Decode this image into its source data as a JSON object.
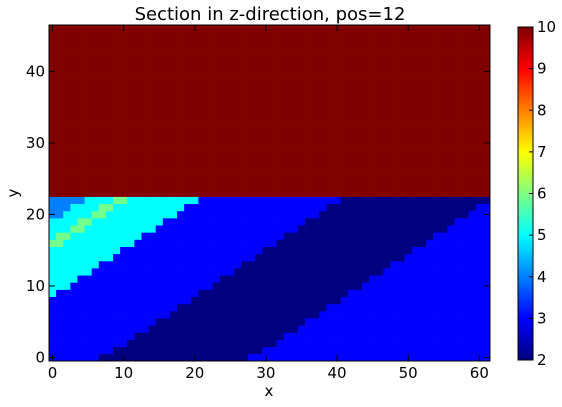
{
  "chart_data": {
    "type": "heatmap",
    "title": "Section in z-direction, pos=12",
    "xlabel": "x",
    "ylabel": "y",
    "xlim": [
      -0.5,
      61.5
    ],
    "ylim": [
      -0.5,
      46.5
    ],
    "x_ticks": [
      0,
      10,
      20,
      30,
      40,
      50,
      60
    ],
    "y_ticks": [
      0,
      10,
      20,
      30,
      40
    ],
    "grid": false,
    "colormap": "jet",
    "colorbar": {
      "vmin": 2,
      "vmax": 10,
      "ticks": [
        2,
        3,
        4,
        5,
        6,
        7,
        8,
        9,
        10
      ]
    },
    "region_rules": {
      "upper_block": {
        "y_min": 23,
        "y_max": 46,
        "value": 10
      },
      "lower_bands": {
        "y_min": 0,
        "y_max": 22,
        "offset_formula": "x - 1.52 * y",
        "bands": [
          {
            "lower": null,
            "upper": -29,
            "value": 4
          },
          {
            "lower": -29,
            "upper": -25,
            "value": 5
          },
          {
            "lower": -25,
            "upper": -23,
            "value": 5.9
          },
          {
            "lower": -23,
            "upper": -13,
            "value": 5
          },
          {
            "lower": -13,
            "upper": 7,
            "value": 3
          },
          {
            "lower": 7,
            "upper": 28,
            "value": 2
          },
          {
            "lower": 28,
            "upper": null,
            "value": 3
          }
        ]
      }
    }
  }
}
